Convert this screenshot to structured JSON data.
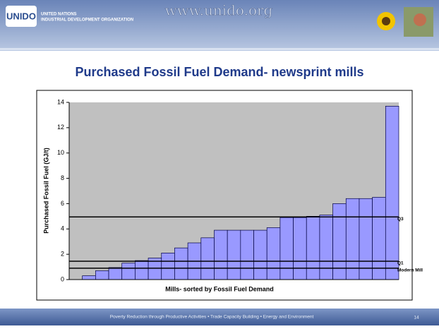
{
  "header": {
    "logo": "UNIDO",
    "org_line1": "UNITED NATIONS",
    "org_line2": "INDUSTRIAL DEVELOPMENT ORGANIZATION",
    "url": "www.unido.org"
  },
  "chart_data": {
    "type": "bar",
    "title": "Purchased Fossil Fuel Demand- newsprint mills",
    "x_label": "Mills- sorted by Fossil Fuel Demand",
    "y_label": "Purchased Fossil Fuel (GJ/t)",
    "categories": [
      null,
      null,
      null,
      null,
      null,
      null,
      null,
      null,
      null,
      null,
      null,
      null,
      null,
      null,
      null,
      null,
      null,
      null,
      null,
      null,
      null,
      null,
      null,
      null,
      null
    ],
    "values": [
      null,
      0.3,
      0.7,
      0.95,
      1.3,
      1.5,
      1.7,
      2.1,
      2.5,
      2.9,
      3.3,
      3.9,
      3.9,
      3.9,
      3.9,
      4.1,
      4.9,
      4.9,
      5.0,
      5.1,
      6.0,
      6.4,
      6.4,
      6.5,
      13.7
    ],
    "color": "#9999ff",
    "ylim": [
      0,
      14
    ],
    "yticks": [
      0,
      2,
      4,
      6,
      8,
      10,
      12,
      14
    ],
    "reference_lines": [
      {
        "label": "Q3",
        "value": 4.95
      },
      {
        "label": "Q1",
        "value": 1.45
      },
      {
        "label": "Modern Mill",
        "value": 0.9
      }
    ]
  },
  "footer": {
    "text": "Poverty Reduction through Productive Activities  •  Trade Capacity Building  •  Energy and Environment",
    "page": "14"
  }
}
